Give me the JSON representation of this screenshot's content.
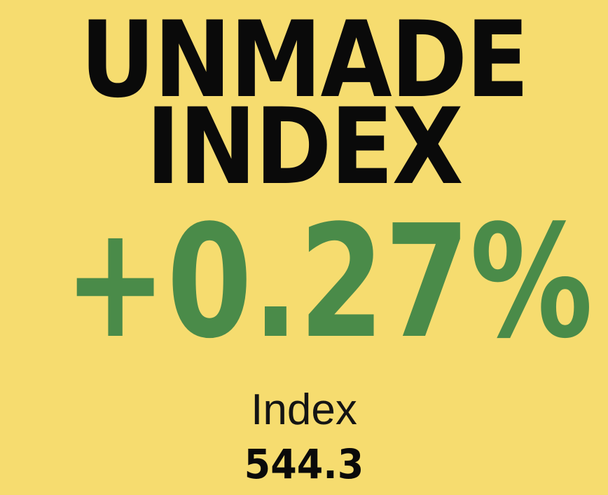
{
  "colors": {
    "background": "#F6DC6F",
    "ink": "#0A0A0A",
    "positive": "#4A8B49"
  },
  "header": {
    "title_line1": "UNMADE",
    "title_line2": "INDEX"
  },
  "index": {
    "change_percent": "+0.27%",
    "change_direction": "up",
    "value_label": "Index",
    "value": "544.3"
  }
}
